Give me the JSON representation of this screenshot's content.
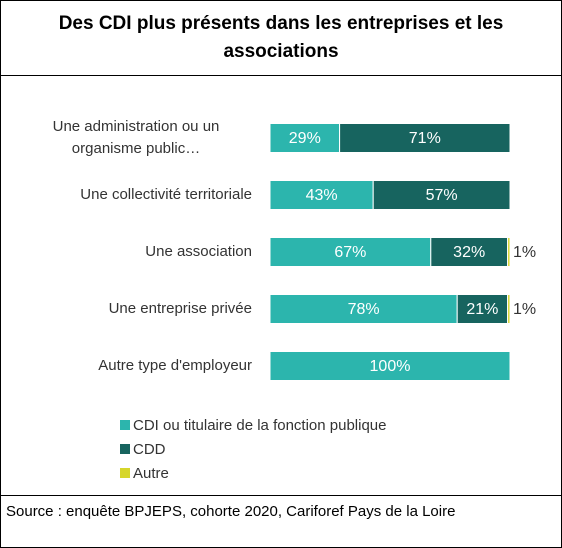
{
  "chart_data": {
    "type": "stacked_barh",
    "title": "Des CDI plus présents dans les entreprises et les associations",
    "categories": [
      "Une administration ou un organisme public…",
      "Une collectivité territoriale",
      "Une association",
      "Une entreprise privée",
      "Autre type d'employeur"
    ],
    "series": [
      {
        "name": "CDI ou titulaire de la fonction publique",
        "color": "#2cb5ad",
        "values": [
          29,
          43,
          67,
          78,
          100
        ],
        "value_labels": [
          "29%",
          "43%",
          "67%",
          "78%",
          "100%"
        ]
      },
      {
        "name": "CDD",
        "color": "#17645f",
        "values": [
          71,
          57,
          32,
          21,
          0
        ],
        "value_labels": [
          "71%",
          "57%",
          "32%",
          "21%",
          null
        ]
      },
      {
        "name": "Autre",
        "color": "#d6d62b",
        "values": [
          0,
          0,
          1,
          1,
          0
        ],
        "value_labels": [
          null,
          null,
          "1%",
          "1%",
          null
        ]
      }
    ],
    "xlim": [
      0,
      100
    ],
    "legend": "bottom",
    "source": "Source : enquête BPJEPS, cohorte 2020, Cariforef Pays de la Loire"
  }
}
